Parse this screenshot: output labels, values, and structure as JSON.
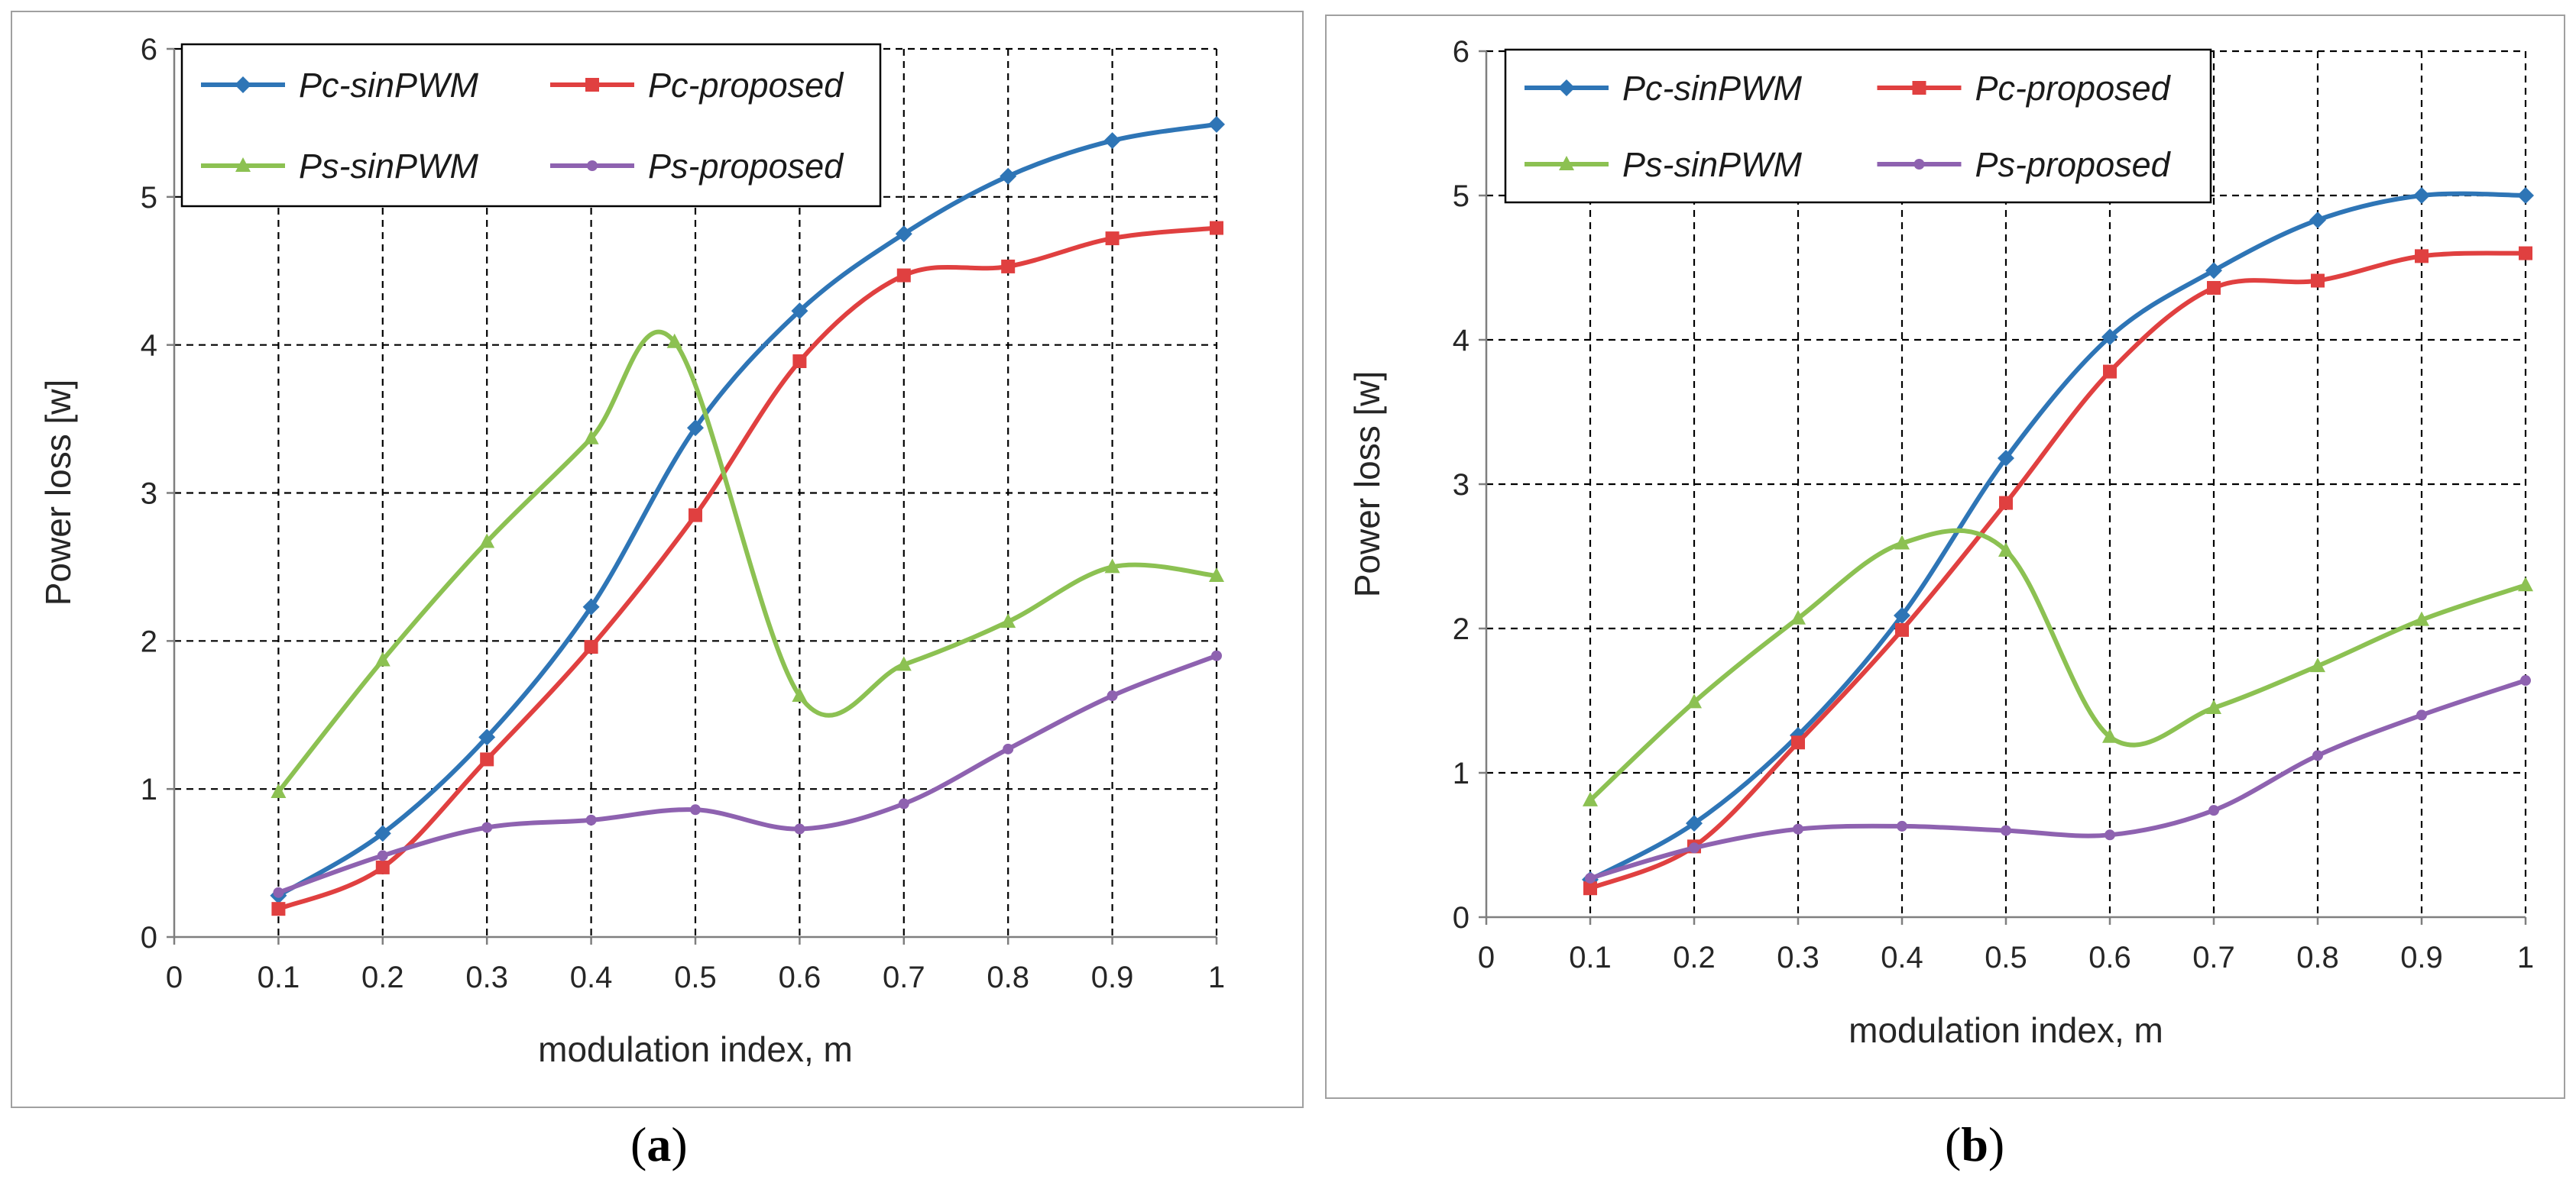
{
  "series_styles": [
    {
      "key": "pc_sin",
      "color": "#2E75B6",
      "marker": "diamond"
    },
    {
      "key": "pc_prop",
      "color": "#E04040",
      "marker": "square"
    },
    {
      "key": "ps_sin",
      "color": "#8CC152",
      "marker": "triangle"
    },
    {
      "key": "ps_prop",
      "color": "#8E62B0",
      "marker": "circle"
    }
  ],
  "chart_data": [
    {
      "type": "line",
      "caption_open": "(",
      "caption_letter": "a",
      "caption_close": ")",
      "xlabel": "modulation index, m",
      "ylabel": "Power loss [w]",
      "xlim": [
        0,
        1
      ],
      "ylim": [
        0,
        6
      ],
      "x_ticks": [
        "0",
        "0.1",
        "0.2",
        "0.3",
        "0.4",
        "0.5",
        "0.6",
        "0.7",
        "0.8",
        "0.9",
        "1"
      ],
      "y_ticks": [
        "0",
        "1",
        "2",
        "3",
        "4",
        "5",
        "6"
      ],
      "grid": true,
      "legend_position": "top-left",
      "series": [
        {
          "name": "Pc-sinPWM",
          "x": [
            0.1,
            0.2,
            0.3,
            0.4,
            0.5,
            0.6,
            0.7,
            0.8,
            0.9,
            1.0
          ],
          "values": [
            0.28,
            0.7,
            1.35,
            2.23,
            3.44,
            4.23,
            4.75,
            5.14,
            5.38,
            5.49
          ]
        },
        {
          "name": "Pc-proposed",
          "x": [
            0.1,
            0.2,
            0.3,
            0.4,
            0.5,
            0.6,
            0.7,
            0.8,
            0.9,
            1.0
          ],
          "values": [
            0.19,
            0.47,
            1.2,
            1.96,
            2.85,
            3.89,
            4.47,
            4.53,
            4.72,
            4.79
          ]
        },
        {
          "name": "Ps-sinPWM",
          "x": [
            0.1,
            0.2,
            0.3,
            0.4,
            0.48,
            0.6,
            0.7,
            0.8,
            0.9,
            1.0
          ],
          "values": [
            0.98,
            1.87,
            2.67,
            3.37,
            4.02,
            1.63,
            1.84,
            2.13,
            2.5,
            2.44
          ]
        },
        {
          "name": "Ps-proposed",
          "x": [
            0.1,
            0.2,
            0.3,
            0.4,
            0.5,
            0.6,
            0.7,
            0.8,
            0.9,
            1.0
          ],
          "values": [
            0.3,
            0.55,
            0.74,
            0.79,
            0.86,
            0.73,
            0.9,
            1.27,
            1.63,
            1.9
          ]
        }
      ]
    },
    {
      "type": "line",
      "caption_open": "(",
      "caption_letter": "b",
      "caption_close": ")",
      "xlabel": "modulation index, m",
      "ylabel": "Power loss [w]",
      "xlim": [
        0,
        1
      ],
      "ylim": [
        0,
        6
      ],
      "x_ticks": [
        "0",
        "0.1",
        "0.2",
        "0.3",
        "0.4",
        "0.5",
        "0.6",
        "0.7",
        "0.8",
        "0.9",
        "1"
      ],
      "y_ticks": [
        "0",
        "1",
        "2",
        "3",
        "4",
        "5",
        "6"
      ],
      "grid": true,
      "legend_position": "top-left",
      "series": [
        {
          "name": "Pc-sinPWM",
          "x": [
            0.1,
            0.2,
            0.3,
            0.4,
            0.5,
            0.6,
            0.7,
            0.8,
            0.9,
            1.0
          ],
          "values": [
            0.26,
            0.65,
            1.26,
            2.09,
            3.18,
            4.02,
            4.48,
            4.83,
            5.0,
            5.0
          ]
        },
        {
          "name": "Pc-proposed",
          "x": [
            0.1,
            0.2,
            0.3,
            0.4,
            0.5,
            0.6,
            0.7,
            0.8,
            0.9,
            1.0
          ],
          "values": [
            0.2,
            0.49,
            1.21,
            1.99,
            2.87,
            3.78,
            4.36,
            4.41,
            4.58,
            4.6
          ]
        },
        {
          "name": "Ps-sinPWM",
          "x": [
            0.1,
            0.2,
            0.3,
            0.4,
            0.5,
            0.6,
            0.7,
            0.8,
            0.9,
            1.0
          ],
          "values": [
            0.81,
            1.49,
            2.07,
            2.59,
            2.54,
            1.25,
            1.45,
            1.74,
            2.06,
            2.3
          ]
        },
        {
          "name": "Ps-proposed",
          "x": [
            0.1,
            0.2,
            0.3,
            0.4,
            0.5,
            0.6,
            0.7,
            0.8,
            0.9,
            1.0
          ],
          "values": [
            0.27,
            0.48,
            0.61,
            0.63,
            0.6,
            0.57,
            0.74,
            1.12,
            1.4,
            1.64
          ]
        }
      ]
    }
  ]
}
